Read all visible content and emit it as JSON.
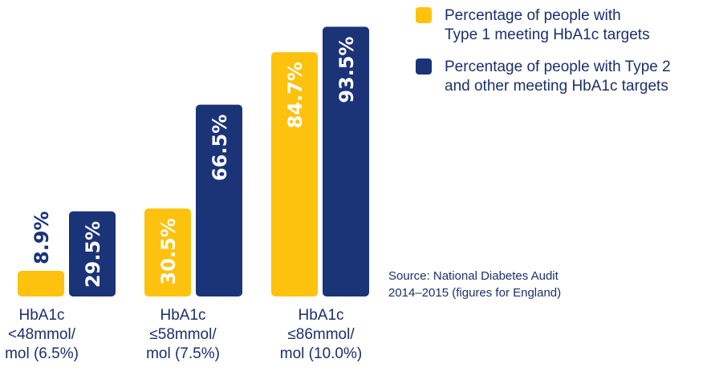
{
  "colors": {
    "type1": "#fcc20e",
    "type2": "#1b3478",
    "text": "#1b2f6b"
  },
  "chart_data": {
    "type": "bar",
    "categories": [
      [
        "HbA1c",
        "<48mmol/",
        "mol (6.5%)"
      ],
      [
        "HbA1c",
        "≤58mmol/",
        "mol (7.5%)"
      ],
      [
        "HbA1c",
        "≤86mmol/",
        "mol (10.0%)"
      ]
    ],
    "series": [
      {
        "name": "Percentage of people with Type 1 meeting HbA1c targets",
        "values": [
          8.9,
          30.5,
          84.7
        ],
        "labels": [
          "8.9%",
          "30.5%",
          "84.7%"
        ],
        "color": "#fcc20e"
      },
      {
        "name": "Percentage of people with Type 2 and other meeting HbA1c targets",
        "values": [
          29.5,
          66.5,
          93.5
        ],
        "labels": [
          "29.5%",
          "66.5%",
          "93.5%"
        ],
        "color": "#1b3478"
      }
    ],
    "ylim": [
      0,
      100
    ],
    "grid": false,
    "legend_position": "top-right"
  },
  "legend": [
    {
      "lines": [
        "Percentage of people with",
        "Type 1 meeting HbA1c targets"
      ]
    },
    {
      "lines": [
        "Percentage of people with Type 2",
        "and other meeting HbA1c targets"
      ]
    }
  ],
  "source": {
    "lines": [
      "Source: National Diabetes Audit",
      "2014–2015 (figures for England)"
    ]
  }
}
